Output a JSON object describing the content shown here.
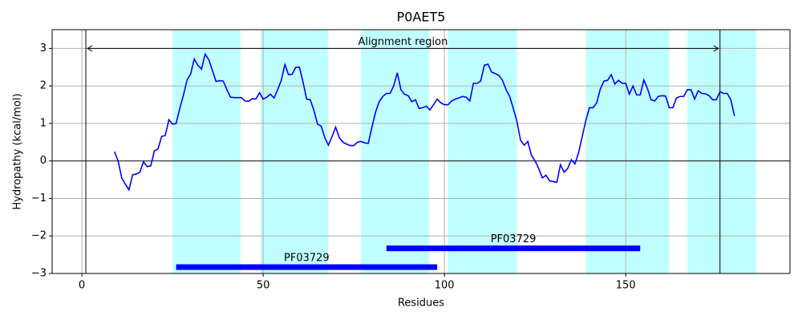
{
  "chart_data": {
    "type": "line",
    "title": "P0AET5",
    "xlabel": "Residues",
    "ylabel": "Hydropathy (kcal/mol)",
    "x": [
      9,
      10,
      11,
      12,
      13,
      14,
      15,
      16,
      17,
      18,
      19,
      20,
      21,
      22,
      23,
      24,
      25,
      26,
      27,
      28,
      29,
      30,
      31,
      32,
      33,
      34,
      35,
      36,
      37,
      38,
      39,
      40,
      41,
      42,
      43,
      44,
      45,
      46,
      47,
      48,
      49,
      50,
      51,
      52,
      53,
      54,
      55,
      56,
      57,
      58,
      59,
      60,
      61,
      62,
      63,
      64,
      65,
      66,
      67,
      68,
      69,
      70,
      71,
      72,
      73,
      74,
      75,
      76,
      77,
      78,
      79,
      80,
      81,
      82,
      83,
      84,
      85,
      86,
      87,
      88,
      89,
      90,
      91,
      92,
      93,
      94,
      95,
      96,
      97,
      98,
      99,
      100,
      101,
      102,
      103,
      104,
      105,
      106,
      107,
      108,
      109,
      110,
      111,
      112,
      113,
      114,
      115,
      116,
      117,
      118,
      119,
      120,
      121,
      122,
      123,
      124,
      125,
      126,
      127,
      128,
      129,
      130,
      131,
      132,
      133,
      134,
      135,
      136,
      137,
      138,
      139,
      140,
      141,
      142,
      143,
      144,
      145,
      146,
      147,
      148,
      149,
      150,
      151,
      152,
      153,
      154,
      155,
      156,
      157,
      158,
      159,
      160,
      161,
      162,
      163,
      164,
      165,
      166,
      167,
      168,
      169,
      170,
      171,
      172,
      173,
      174,
      175,
      176,
      177,
      178,
      179,
      180
    ],
    "series": [
      {
        "color": "#0000ff",
        "values": [
          0.25,
          0.0,
          -0.45,
          -0.62,
          -0.77,
          -0.37,
          -0.35,
          -0.3,
          -0.02,
          -0.15,
          -0.13,
          0.27,
          0.32,
          0.65,
          0.68,
          1.1,
          0.98,
          1.0,
          1.4,
          1.75,
          2.15,
          2.32,
          2.72,
          2.55,
          2.45,
          2.85,
          2.7,
          2.42,
          2.12,
          2.14,
          2.13,
          1.9,
          1.7,
          1.69,
          1.69,
          1.69,
          1.6,
          1.59,
          1.66,
          1.65,
          1.82,
          1.65,
          1.7,
          1.78,
          1.68,
          1.9,
          2.15,
          2.57,
          2.3,
          2.31,
          2.5,
          2.5,
          2.1,
          1.65,
          1.63,
          1.35,
          0.98,
          0.93,
          0.62,
          0.42,
          0.65,
          0.9,
          0.62,
          0.5,
          0.45,
          0.41,
          0.41,
          0.5,
          0.52,
          0.48,
          0.47,
          0.9,
          1.3,
          1.58,
          1.72,
          1.8,
          1.8,
          2.0,
          2.35,
          1.9,
          1.78,
          1.74,
          1.58,
          1.63,
          1.4,
          1.42,
          1.46,
          1.36,
          1.5,
          1.65,
          1.55,
          1.5,
          1.5,
          1.6,
          1.65,
          1.68,
          1.72,
          1.7,
          1.6,
          2.07,
          2.07,
          2.13,
          2.55,
          2.58,
          2.37,
          2.33,
          2.28,
          2.15,
          1.9,
          1.72,
          1.4,
          1.05,
          0.55,
          0.42,
          0.52,
          0.15,
          0.0,
          -0.2,
          -0.45,
          -0.38,
          -0.53,
          -0.55,
          -0.57,
          -0.1,
          -0.3,
          -0.2,
          0.03,
          -0.08,
          0.22,
          0.65,
          1.08,
          1.42,
          1.42,
          1.55,
          1.92,
          2.13,
          2.15,
          2.3,
          2.05,
          2.15,
          2.07,
          2.07,
          1.78,
          2.0,
          1.76,
          1.76,
          2.16,
          1.93,
          1.63,
          1.6,
          1.72,
          1.74,
          1.73,
          1.42,
          1.42,
          1.68,
          1.72,
          1.72,
          1.9,
          1.9,
          1.65,
          1.87,
          1.8,
          1.79,
          1.74,
          1.63,
          1.63,
          1.85,
          1.8,
          1.8,
          1.63,
          1.2
        ]
      }
    ],
    "spans": [
      [
        25,
        43.8
      ],
      [
        49.3,
        68
      ],
      [
        77,
        95.8
      ],
      [
        101,
        120
      ],
      [
        139,
        162
      ],
      [
        167,
        186
      ]
    ],
    "span_color": "#c0ffff",
    "vlines": [
      1.1,
      176
    ],
    "hline": 0,
    "annotation": {
      "text": "Alignment region",
      "x": [
        1.1,
        176
      ],
      "y": 3
    },
    "domains": [
      {
        "label": "PF03729",
        "start": 26,
        "end": 98,
        "y": -2.83
      },
      {
        "label": "PF03729",
        "start": 84,
        "end": 154,
        "y": -2.33
      }
    ],
    "domain_color": "#0000ff",
    "xlim": [
      -8.2,
      195.3
    ],
    "ylim": [
      -3,
      3.5
    ],
    "xticks": [
      0,
      50,
      100,
      150
    ],
    "yticks": [
      {
        "value": -3,
        "label": "−3"
      },
      {
        "value": -2,
        "label": "−2"
      },
      {
        "value": -1,
        "label": "−1"
      },
      0,
      1,
      2,
      3
    ],
    "grid": true
  }
}
